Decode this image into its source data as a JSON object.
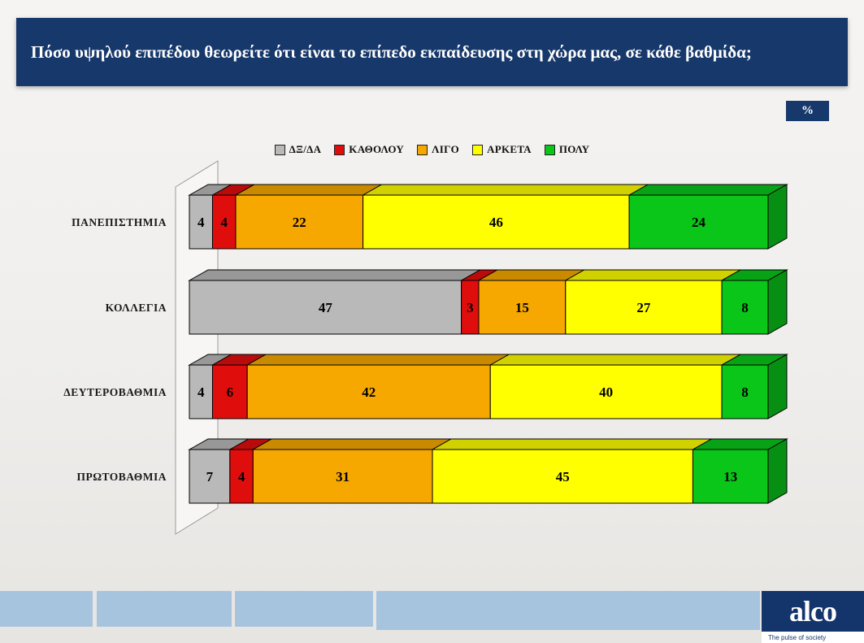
{
  "header": {
    "title": "Πόσο υψηλού επιπέδου θεωρείτε ότι είναι το επίπεδο εκπαίδευσης στη χώρα μας, σε κάθε βαθμίδα;",
    "percent_label": "%"
  },
  "chart_data": {
    "type": "bar",
    "subtype": "horizontal-stacked-3d",
    "title": "",
    "categories": [
      "ΠΑΝΕΠΙΣΤΗΜΙΑ",
      "ΚΟΛΛΕΓΙΑ",
      "ΔΕΥΤΕΡΟΒΑΘΜΙΑ",
      "ΠΡΩΤΟΒΑΘΜΙΑ"
    ],
    "series": [
      {
        "name": "ΔΞ/ΔΑ",
        "color": "#b9b9b9",
        "values": [
          4,
          47,
          4,
          7
        ]
      },
      {
        "name": "ΚΑΘΟΛΟΥ",
        "color": "#e00d0d",
        "values": [
          4,
          3,
          6,
          4
        ]
      },
      {
        "name": "ΛΙΓΟ",
        "color": "#f6a800",
        "values": [
          22,
          15,
          42,
          31
        ]
      },
      {
        "name": "ΑΡΚΕΤΑ",
        "color": "#ffff00",
        "values": [
          46,
          27,
          40,
          45
        ]
      },
      {
        "name": "ΠΟΛΥ",
        "color": "#09c619",
        "values": [
          24,
          8,
          8,
          13
        ]
      }
    ],
    "xlim": [
      0,
      100
    ],
    "unit": "%",
    "legend_position": "top",
    "value_labels": true,
    "grid": false
  },
  "footer": {
    "logo_text": "alco",
    "logo_tagline": "The pulse of society"
  }
}
